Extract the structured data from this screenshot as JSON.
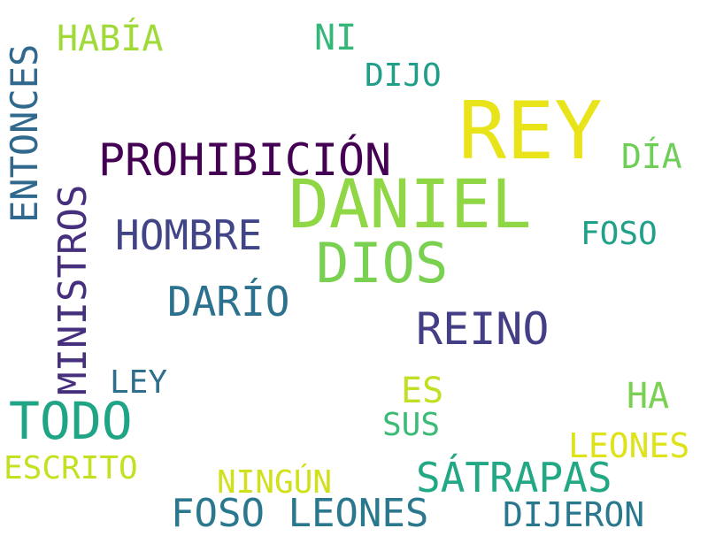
{
  "words": {
    "daniel": {
      "text": "DANIEL",
      "color": "#8fd744"
    },
    "rey": {
      "text": "REY",
      "color": "#e8e419"
    },
    "prohibicion": {
      "text": "PROHIBICIÓN",
      "color": "#440154"
    },
    "dios": {
      "text": "DIOS",
      "color": "#7ad151"
    },
    "hombre": {
      "text": "HOMBRE",
      "color": "#414487"
    },
    "reino": {
      "text": "REINO",
      "color": "#433e85"
    },
    "dario": {
      "text": "DARÍO",
      "color": "#2c728e"
    },
    "todo": {
      "text": "TODO",
      "color": "#20a486"
    },
    "satrapas": {
      "text": "SÁTRAPAS",
      "color": "#22a884"
    },
    "foso_leones": {
      "text": "FOSO LEONES",
      "color": "#2a788e"
    },
    "dijeron": {
      "text": "DIJERON",
      "color": "#2a788e"
    },
    "habia": {
      "text": "HABÍA",
      "color": "#a0da39"
    },
    "ni": {
      "text": "NI",
      "color": "#35b779"
    },
    "dijo": {
      "text": "DIJO",
      "color": "#1f9e89"
    },
    "dia": {
      "text": "DÍA",
      "color": "#6ece58"
    },
    "foso": {
      "text": "FOSO",
      "color": "#1fa088"
    },
    "ha": {
      "text": "HA",
      "color": "#7ad151"
    },
    "leones": {
      "text": "LEONES",
      "color": "#dde318"
    },
    "es": {
      "text": "ES",
      "color": "#c2df23"
    },
    "sus": {
      "text": "SUS",
      "color": "#3bbb75"
    },
    "ley": {
      "text": "LEY",
      "color": "#2e6f8e"
    },
    "ningun": {
      "text": "NINGÚN",
      "color": "#d0e11c"
    },
    "escrito": {
      "text": "ESCRITO",
      "color": "#c5e021"
    },
    "entonces": {
      "text": "ENTONCES",
      "color": "#31688e"
    },
    "ministros": {
      "text": "MINISTROS",
      "color": "#46307e"
    }
  }
}
